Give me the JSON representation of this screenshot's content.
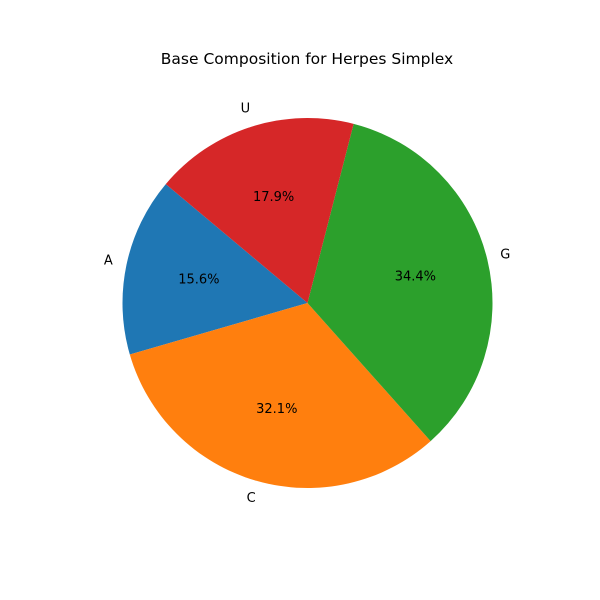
{
  "chart_data": {
    "type": "pie",
    "title": "Base Composition for Herpes Simplex",
    "slices": [
      {
        "label": "A",
        "value": 15.6,
        "pct_text": "15.6%",
        "color": "#1f77b4"
      },
      {
        "label": "C",
        "value": 32.1,
        "pct_text": "32.1%",
        "color": "#ff7f0e"
      },
      {
        "label": "G",
        "value": 34.4,
        "pct_text": "34.4%",
        "color": "#2ca02c"
      },
      {
        "label": "U",
        "value": 17.9,
        "pct_text": "17.9%",
        "color": "#d62728"
      }
    ],
    "start_angle_deg": 140,
    "direction": "counterclockwise",
    "legend": "none"
  }
}
